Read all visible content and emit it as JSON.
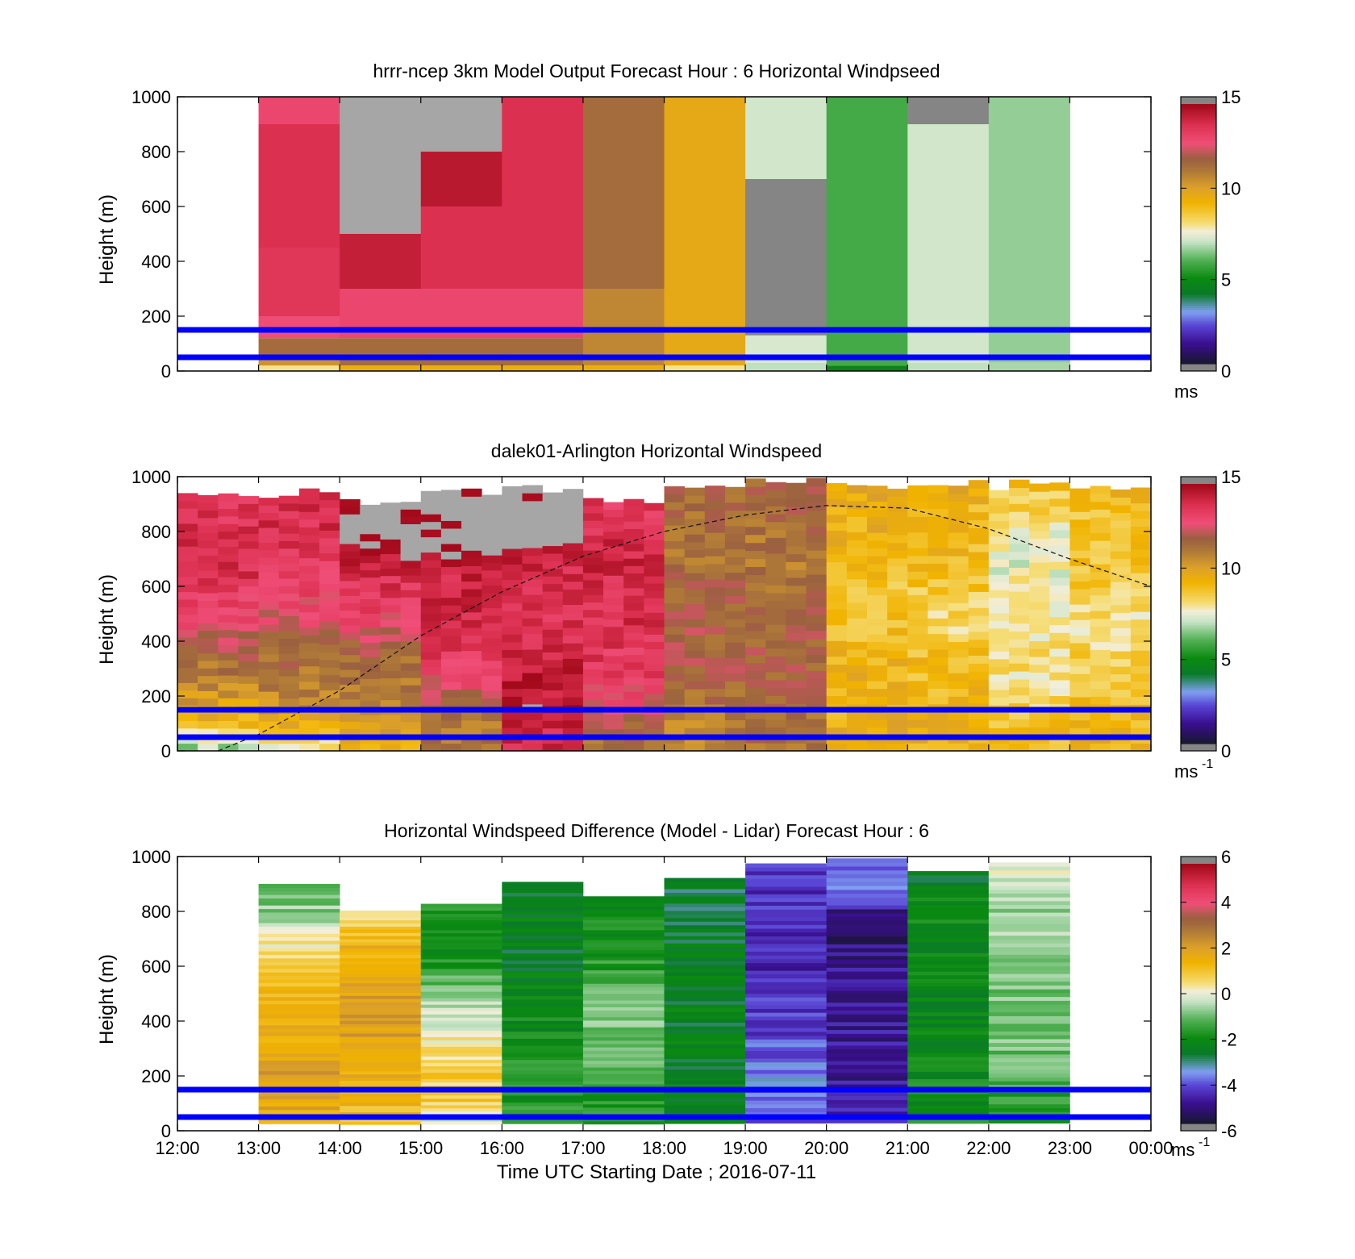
{
  "figure": {
    "xlabel": "Time UTC  Starting Date ; 2016-07-11",
    "x_tick_labels": [
      "12:00",
      "13:00",
      "14:00",
      "15:00",
      "16:00",
      "17:00",
      "18:00",
      "19:00",
      "20:00",
      "21:00",
      "22:00",
      "23:00",
      "00:00"
    ],
    "ylabel": "Height (m)",
    "y_tick_labels": [
      "0",
      "200",
      "400",
      "600",
      "800",
      "1000"
    ],
    "reference_lines_m": [
      50,
      150
    ],
    "reference_line_color": "#0000ff"
  },
  "chart_data": [
    {
      "type": "heatmap",
      "title": "hrrr-ncep 3km Model Output   Forecast Hour : 6 Horizontal Windpseed",
      "xlabel": "",
      "ylabel": "Height (m)",
      "xlim": [
        "12:00",
        "00:00"
      ],
      "ylim": [
        0,
        1000
      ],
      "colorbar": {
        "ticks": [
          "0",
          "5",
          "10",
          "15"
        ],
        "unit": "ms",
        "unit_sup": "",
        "range": [
          0,
          15
        ]
      },
      "columns": [
        {
          "start": "13:00",
          "end": "14:00",
          "segments": [
            {
              "bottom": 0,
              "top": 20,
              "value": 8.0
            },
            {
              "bottom": 20,
              "top": 60,
              "value": 10.5
            },
            {
              "bottom": 60,
              "top": 120,
              "value": 11.5
            },
            {
              "bottom": 120,
              "top": 200,
              "value": 12.8
            },
            {
              "bottom": 200,
              "top": 450,
              "value": 13.6
            },
            {
              "bottom": 450,
              "top": 900,
              "value": 13.8
            },
            {
              "bottom": 900,
              "top": 1000,
              "value": 13.0
            }
          ]
        },
        {
          "start": "14:00",
          "end": "15:00",
          "segments": [
            {
              "bottom": 0,
              "top": 20,
              "value": 9.5
            },
            {
              "bottom": 20,
              "top": 120,
              "value": 11.5
            },
            {
              "bottom": 120,
              "top": 300,
              "value": 13.0
            },
            {
              "bottom": 300,
              "top": 500,
              "value": 14.3
            },
            {
              "bottom": 500,
              "top": 1000,
              "value": 15.5
            }
          ]
        },
        {
          "start": "15:00",
          "end": "16:00",
          "segments": [
            {
              "bottom": 0,
              "top": 20,
              "value": 9.5
            },
            {
              "bottom": 20,
              "top": 120,
              "value": 11.5
            },
            {
              "bottom": 120,
              "top": 300,
              "value": 13.0
            },
            {
              "bottom": 300,
              "top": 600,
              "value": 13.8
            },
            {
              "bottom": 600,
              "top": 800,
              "value": 14.5
            },
            {
              "bottom": 800,
              "top": 1000,
              "value": 15.5
            }
          ]
        },
        {
          "start": "16:00",
          "end": "17:00",
          "segments": [
            {
              "bottom": 0,
              "top": 20,
              "value": 9.5
            },
            {
              "bottom": 20,
              "top": 120,
              "value": 11.5
            },
            {
              "bottom": 120,
              "top": 300,
              "value": 13.0
            },
            {
              "bottom": 300,
              "top": 1000,
              "value": 13.8
            }
          ]
        },
        {
          "start": "17:00",
          "end": "18:00",
          "segments": [
            {
              "bottom": 0,
              "top": 20,
              "value": 9.5
            },
            {
              "bottom": 20,
              "top": 300,
              "value": 10.8
            },
            {
              "bottom": 300,
              "top": 1000,
              "value": 11.5
            }
          ]
        },
        {
          "start": "18:00",
          "end": "19:00",
          "segments": [
            {
              "bottom": 0,
              "top": 20,
              "value": 8.0
            },
            {
              "bottom": 20,
              "top": 1000,
              "value": 9.8
            }
          ]
        },
        {
          "start": "19:00",
          "end": "20:00",
          "segments": [
            {
              "bottom": 0,
              "top": 30,
              "value": 7.0
            },
            {
              "bottom": 30,
              "top": 130,
              "value": 7.3
            },
            {
              "bottom": 130,
              "top": 700,
              "value": -1
            },
            {
              "bottom": 700,
              "top": 1000,
              "value": 7.2
            }
          ]
        },
        {
          "start": "20:00",
          "end": "21:00",
          "segments": [
            {
              "bottom": 0,
              "top": 20,
              "value": 4.6
            },
            {
              "bottom": 20,
              "top": 1000,
              "value": 5.8
            }
          ]
        },
        {
          "start": "21:00",
          "end": "22:00",
          "segments": [
            {
              "bottom": 0,
              "top": 30,
              "value": 7.0
            },
            {
              "bottom": 30,
              "top": 900,
              "value": 7.2
            },
            {
              "bottom": 900,
              "top": 1000,
              "value": -1
            }
          ]
        },
        {
          "start": "22:00",
          "end": "23:00",
          "segments": [
            {
              "bottom": 0,
              "top": 30,
              "value": 6.8
            },
            {
              "bottom": 30,
              "top": 1000,
              "value": 6.6
            }
          ]
        }
      ]
    },
    {
      "type": "heatmap",
      "title": "dalek01-Arlington  Horizontal Windspeed",
      "xlabel": "",
      "ylabel": "Height (m)",
      "xlim": [
        "12:00",
        "00:00"
      ],
      "ylim": [
        0,
        1000
      ],
      "colorbar": {
        "ticks": [
          "0",
          "5",
          "10",
          "15"
        ],
        "unit": "ms",
        "unit_sup": "-1",
        "range": [
          0,
          15
        ]
      },
      "hourly_profiles": [
        {
          "start": "12:00",
          "end": "13:00",
          "top_m": 940,
          "values": [
            6.5,
            9.5,
            10.5,
            11.5,
            12.5,
            13.3,
            13.8,
            13.8,
            13.5,
            13.8
          ]
        },
        {
          "start": "13:00",
          "end": "14:00",
          "top_m": 960,
          "values": [
            7.5,
            10.0,
            11.0,
            11.5,
            12.3,
            13.0,
            13.5,
            13.8,
            13.8,
            14.0
          ]
        },
        {
          "start": "14:00",
          "end": "15:00",
          "top_m": 920,
          "values": [
            9.0,
            10.5,
            11.0,
            11.5,
            12.5,
            13.5,
            14.0,
            15.5,
            15.5,
            13.5
          ]
        },
        {
          "start": "15:00",
          "end": "16:00",
          "top_m": 970,
          "values": [
            11.5,
            11.0,
            12.5,
            13.5,
            14.0,
            14.0,
            14.2,
            15.5,
            15.5,
            15.5
          ]
        },
        {
          "start": "16:00",
          "end": "17:00",
          "top_m": 980,
          "values": [
            13.8,
            14.3,
            14.5,
            14.2,
            13.8,
            13.6,
            14.0,
            15.5,
            15.5,
            15.5
          ]
        },
        {
          "start": "17:00",
          "end": "18:00",
          "top_m": 940,
          "values": [
            11.0,
            12.0,
            13.0,
            13.5,
            13.8,
            13.8,
            14.0,
            14.0,
            13.5,
            13.0
          ]
        },
        {
          "start": "18:00",
          "end": "19:00",
          "top_m": 990,
          "values": [
            10.8,
            11.0,
            11.5,
            11.8,
            11.8,
            11.8,
            11.5,
            11.3,
            11.5,
            11.8
          ]
        },
        {
          "start": "19:00",
          "end": "20:00",
          "top_m": 1000,
          "values": [
            11.3,
            11.5,
            11.7,
            11.8,
            11.8,
            11.5,
            11.2,
            11.3,
            11.8,
            11.8
          ]
        },
        {
          "start": "20:00",
          "end": "21:00",
          "top_m": 990,
          "values": [
            9.8,
            9.5,
            9.5,
            9.3,
            9.0,
            8.5,
            9.2,
            9.5,
            9.5,
            10.0
          ]
        },
        {
          "start": "21:00",
          "end": "22:00",
          "top_m": 990,
          "values": [
            9.5,
            9.5,
            9.2,
            9.0,
            8.3,
            8.5,
            9.0,
            9.3,
            9.3,
            9.8
          ]
        },
        {
          "start": "22:00",
          "end": "23:00",
          "top_m": 990,
          "values": [
            9.3,
            9.0,
            8.0,
            8.2,
            7.8,
            8.0,
            7.5,
            7.6,
            8.5,
            9.0
          ]
        },
        {
          "start": "23:00",
          "end": "00:00",
          "top_m": 990,
          "values": [
            9.5,
            9.3,
            9.0,
            8.5,
            8.0,
            8.4,
            8.8,
            8.8,
            9.0,
            9.5
          ]
        }
      ],
      "dashed_curve": [
        [
          12.5,
          0
        ],
        [
          13.0,
          60
        ],
        [
          14.0,
          220
        ],
        [
          15.0,
          420
        ],
        [
          16.0,
          580
        ],
        [
          17.0,
          710
        ],
        [
          18.0,
          800
        ],
        [
          19.0,
          860
        ],
        [
          20.0,
          895
        ],
        [
          21.0,
          885
        ],
        [
          22.0,
          810
        ],
        [
          23.0,
          700
        ],
        [
          24.0,
          600
        ]
      ]
    },
    {
      "type": "heatmap",
      "title": "Horizontal Windspeed Difference (Model - Lidar) Forecast Hour : 6",
      "xlabel": "Time UTC  Starting Date ; 2016-07-11",
      "ylabel": "Height (m)",
      "xlim": [
        "12:00",
        "00:00"
      ],
      "ylim": [
        0,
        1000
      ],
      "colorbar": {
        "ticks": [
          "-6",
          "-4",
          "-2",
          "0",
          "2",
          "4",
          "6"
        ],
        "unit": "ms",
        "unit_sup": "-1",
        "range": [
          -6,
          6
        ]
      },
      "hourly_profiles": [
        {
          "start": "13:00",
          "end": "14:00",
          "top_m": 900,
          "values": [
            1.8,
            1.8,
            2.0,
            1.5,
            1.5,
            1.2,
            0.5,
            -0.5,
            -1.2,
            -1.5
          ]
        },
        {
          "start": "14:00",
          "end": "15:00",
          "top_m": 840,
          "values": [
            1.0,
            1.5,
            1.8,
            2.0,
            2.0,
            1.8,
            1.5,
            0.8,
            0.2,
            -0.3
          ]
        },
        {
          "start": "15:00",
          "end": "16:00",
          "top_m": 830,
          "values": [
            -0.5,
            0.8,
            0.8,
            0.3,
            -0.3,
            -1.3,
            -2.2,
            -2.0,
            -1.2,
            -1.5
          ]
        },
        {
          "start": "16:00",
          "end": "17:00",
          "top_m": 930,
          "values": [
            -1.5,
            -1.8,
            -1.8,
            -2.0,
            -2.2,
            -2.4,
            -2.5,
            -2.5,
            -2.6,
            -2.6
          ]
        },
        {
          "start": "17:00",
          "end": "18:00",
          "top_m": 870,
          "values": [
            -2.0,
            -1.8,
            -1.2,
            -1.0,
            -1.0,
            -1.5,
            -1.8,
            -2.0,
            -2.2,
            -2.3
          ]
        },
        {
          "start": "18:00",
          "end": "19:00",
          "top_m": 940,
          "values": [
            -2.2,
            -2.4,
            -2.5,
            -2.5,
            -2.5,
            -2.5,
            -2.6,
            -2.7,
            -2.8,
            -3.0
          ]
        },
        {
          "start": "19:00",
          "end": "20:00",
          "top_m": 1000,
          "values": [
            -4.0,
            -4.0,
            -3.8,
            -4.2,
            -4.5,
            -4.6,
            -4.7,
            -4.6,
            -4.5,
            -4.4
          ]
        },
        {
          "start": "20:00",
          "end": "21:00",
          "top_m": 1000,
          "values": [
            -4.7,
            -4.8,
            -5.0,
            -5.0,
            -4.8,
            -5.0,
            -5.2,
            -5.5,
            -3.5,
            -3.8
          ]
        },
        {
          "start": "21:00",
          "end": "22:00",
          "top_m": 960,
          "values": [
            -2.0,
            -2.0,
            -2.2,
            -2.3,
            -2.3,
            -2.2,
            -2.3,
            -2.2,
            -2.4,
            -2.5
          ]
        },
        {
          "start": "22:00",
          "end": "23:00",
          "top_m": 1000,
          "values": [
            -1.8,
            -1.5,
            -1.2,
            -1.0,
            -1.0,
            -1.0,
            -0.8,
            -0.6,
            -0.5,
            0.3
          ]
        }
      ]
    }
  ]
}
